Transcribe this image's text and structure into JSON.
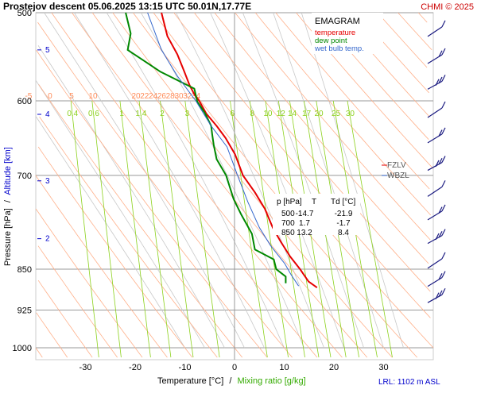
{
  "header": {
    "title": "Prostejov   descent   05.06.2025 13:15 UTC   50.01N,17.77E",
    "copyright": "CHMI © 2025"
  },
  "legend": {
    "title": "EMAGRAM",
    "temperature": "temperature",
    "dewpoint": "dew point",
    "wetbulb": "wet bulb temp."
  },
  "levels": {
    "fzlv": "FZLV",
    "wbzl": "WBZL",
    "lrl": "LRL: 1102 m ASL"
  },
  "axes": {
    "ylabel_pressure": "Pressure [hPa]",
    "ylabel_sep": "/",
    "ylabel_altitude": "Altitude [km]",
    "xlabel_temp": "Temperature [°C]",
    "xlabel_sep": "/",
    "xlabel_mix": "Mixing ratio [g/kg]"
  },
  "table": {
    "headers": [
      "p [hPa]",
      "T",
      "Td [°C]"
    ],
    "rows": [
      [
        "500",
        "-14.7",
        "-21.9"
      ],
      [
        "700",
        "1.7",
        "-1.7"
      ],
      [
        "850",
        "13.2",
        "8.4"
      ]
    ]
  },
  "colors": {
    "temperature": "#e60000",
    "dewpoint": "#008800",
    "wetbulb": "#3366cc",
    "dry_adiabat": "#ffb08a",
    "moist_adiabat": "#c8c8c8",
    "mixing_ratio": "#8cd11c",
    "isobar": "#999999",
    "wind": "#1a1a80"
  },
  "chart_data": {
    "type": "line",
    "xlim": [
      -40,
      40
    ],
    "pressure_range": [
      500,
      1000
    ],
    "y_scale": "log-pressure",
    "pressure_ticks": [
      500,
      600,
      700,
      850,
      925,
      1000
    ],
    "temp_ticks": [
      -30,
      -20,
      -10,
      0,
      10,
      20,
      30
    ],
    "altitude_ticks_km": [
      {
        "km": "5",
        "p": 540
      },
      {
        "km": "4",
        "p": 617
      },
      {
        "km": "3",
        "p": 708
      },
      {
        "km": "2",
        "p": 798
      }
    ],
    "dry_adiabat_labels": [
      -5,
      0,
      5,
      10,
      20,
      22,
      24,
      26,
      28,
      30,
      32,
      34
    ],
    "mixing_ratio_labels": [
      "0.4",
      "0.6",
      "1",
      "1.4",
      "2",
      "3",
      "6",
      "8",
      "10",
      "12",
      "14",
      "17",
      "20",
      "25",
      "30"
    ],
    "series": [
      {
        "name": "temperature",
        "points": [
          [
            -14.7,
            500
          ],
          [
            -13.5,
            525
          ],
          [
            -11.5,
            545
          ],
          [
            -10.1,
            565
          ],
          [
            -9.1,
            580
          ],
          [
            -8.1,
            592
          ],
          [
            -7.1,
            600
          ],
          [
            -5.7,
            616
          ],
          [
            -3.6,
            632
          ],
          [
            -1.8,
            648
          ],
          [
            0.1,
            670
          ],
          [
            1.7,
            700
          ],
          [
            4.1,
            725
          ],
          [
            6.1,
            750
          ],
          [
            7.7,
            780
          ],
          [
            9.3,
            803
          ],
          [
            11.2,
            828
          ],
          [
            13.2,
            850
          ],
          [
            14.9,
            872
          ],
          [
            16.6,
            883
          ]
        ]
      },
      {
        "name": "dew point",
        "points": [
          [
            -21.9,
            500
          ],
          [
            -20.9,
            522
          ],
          [
            -21.5,
            540
          ],
          [
            -18.3,
            552
          ],
          [
            -14.9,
            565
          ],
          [
            -8.1,
            585
          ],
          [
            -7.5,
            601
          ],
          [
            -6.0,
            615
          ],
          [
            -4.7,
            632
          ],
          [
            -4.5,
            643
          ],
          [
            -4.2,
            657
          ],
          [
            -3.6,
            677
          ],
          [
            -1.7,
            700
          ],
          [
            -0.2,
            735
          ],
          [
            1.4,
            760
          ],
          [
            3.5,
            790
          ],
          [
            4.1,
            816
          ],
          [
            7.9,
            833
          ],
          [
            8.4,
            850
          ],
          [
            10.3,
            863
          ],
          [
            10.3,
            875
          ]
        ]
      },
      {
        "name": "wet bulb temp.",
        "points": [
          [
            -17.5,
            500
          ],
          [
            -14.7,
            540
          ],
          [
            -11.5,
            570
          ],
          [
            -7.8,
            600
          ],
          [
            -4.7,
            632
          ],
          [
            -1.5,
            660
          ],
          [
            0.6,
            700
          ],
          [
            2.7,
            740
          ],
          [
            5.0,
            780
          ],
          [
            7.3,
            810
          ],
          [
            10.1,
            840
          ],
          [
            11.4,
            860
          ],
          [
            12.9,
            880
          ]
        ]
      }
    ],
    "freezing_level_hPa": 678,
    "wet_bulb_zero_hPa": 700,
    "wind_barbs_hPa": [
      520,
      550,
      580,
      615,
      648,
      686,
      724,
      760,
      798,
      840,
      872,
      902
    ]
  }
}
